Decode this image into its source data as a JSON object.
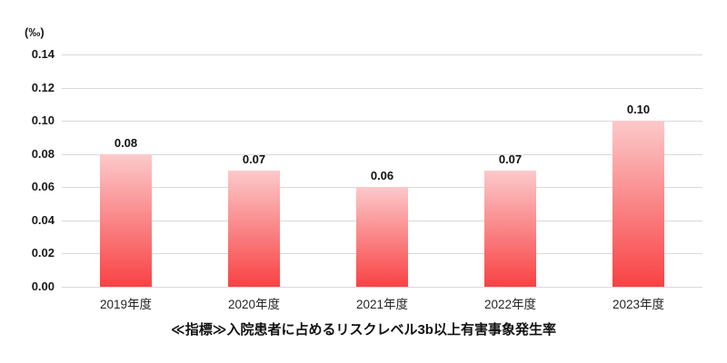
{
  "chart_data": {
    "type": "bar",
    "title": "≪指標≫入院患者に占めるリスクレベル3b以上有害事象発生率",
    "unit_label": "(‰)",
    "categories": [
      "2019年度",
      "2020年度",
      "2021年度",
      "2022年度",
      "2023年度"
    ],
    "values": [
      0.08,
      0.07,
      0.06,
      0.07,
      0.1
    ],
    "value_labels": [
      "0.08",
      "0.07",
      "0.06",
      "0.07",
      "0.10"
    ],
    "ylim": [
      0,
      0.14
    ],
    "ytick_labels": [
      "0.00",
      "0.02",
      "0.04",
      "0.06",
      "0.08",
      "0.10",
      "0.12",
      "0.14"
    ],
    "ytick_values": [
      0,
      0.02,
      0.04,
      0.06,
      0.08,
      0.1,
      0.12,
      0.14
    ],
    "grid": "horizontal",
    "legend": "none",
    "colors": {
      "bar_gradient_top": "#fcc9ca",
      "bar_gradient_bottom": "#f94244",
      "gridline": "#d9d9d9",
      "text": "#111111"
    }
  }
}
